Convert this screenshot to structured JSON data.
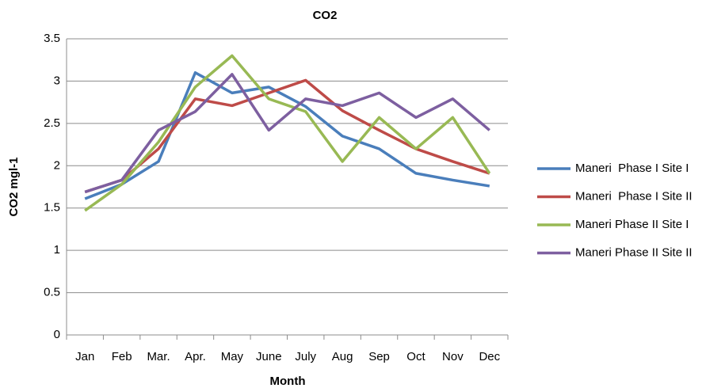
{
  "chart_data": {
    "type": "line",
    "title": "CO2",
    "x_label": "Month",
    "y_label": "CO2 mgl-1",
    "categories": [
      "Jan",
      "Feb",
      "Mar.",
      "Apr.",
      "May",
      "June",
      "July",
      "Aug",
      "Sep",
      "Oct",
      "Nov",
      "Dec"
    ],
    "series": [
      {
        "name": "Maneri  Phase I Site I",
        "color": "#4a7ebb",
        "values": [
          1.61,
          1.78,
          2.05,
          3.1,
          2.86,
          2.93,
          2.7,
          2.35,
          2.2,
          1.91,
          1.83,
          1.76
        ]
      },
      {
        "name": "Maneri  Phase I Site II",
        "color": "#be4b48",
        "values": [
          1.69,
          1.83,
          2.2,
          2.79,
          2.71,
          2.86,
          3.01,
          2.65,
          2.42,
          2.2,
          2.05,
          1.91
        ]
      },
      {
        "name": "Maneri Phase II Site I",
        "color": "#98b954",
        "values": [
          1.47,
          1.78,
          2.28,
          2.93,
          3.3,
          2.79,
          2.64,
          2.05,
          2.57,
          2.2,
          2.57,
          1.91
        ]
      },
      {
        "name": "Maneri Phase II Site II",
        "color": "#7d5fa0",
        "values": [
          1.69,
          1.83,
          2.42,
          2.64,
          3.08,
          2.42,
          2.79,
          2.71,
          2.86,
          2.57,
          2.79,
          2.42
        ]
      }
    ],
    "ylim": [
      0,
      3.5
    ],
    "yticks": [
      0,
      0.5,
      1,
      1.5,
      2,
      2.5,
      3,
      3.5
    ],
    "grid": true,
    "legend": "right"
  }
}
